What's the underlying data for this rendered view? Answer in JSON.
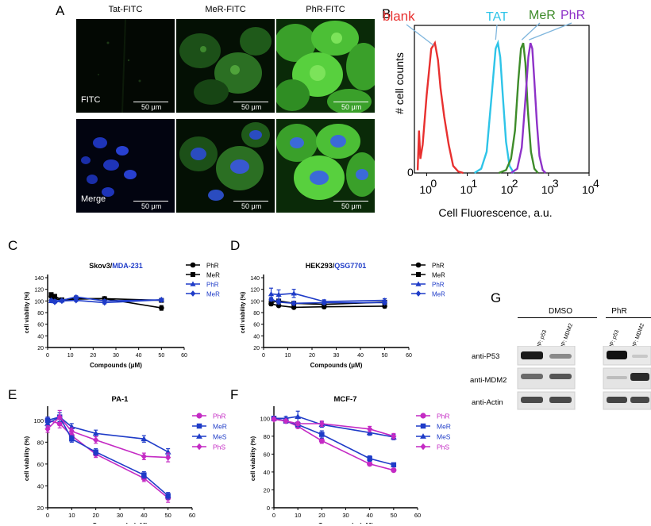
{
  "panels": {
    "A": "A",
    "B": "B",
    "C": "C",
    "D": "D",
    "E": "E",
    "F": "F",
    "G": "G"
  },
  "microscopy": {
    "columns": [
      "Tat-FITC",
      "MeR-FITC",
      "PhR-FITC"
    ],
    "row_labels": [
      "FITC",
      "Merge"
    ],
    "scale_text": "50 μm"
  },
  "western": {
    "groups": [
      "DMSO",
      "PhR"
    ],
    "lanes": [
      "IP: p53",
      "IP: MDM2"
    ],
    "rows": [
      "anti-P53",
      "anti-MDM2",
      "anti-Actin"
    ]
  },
  "chart_data": [
    {
      "id": "B",
      "type": "line",
      "title": "",
      "xlabel": "Cell Fluorescence, a.u.",
      "ylabel": "# cell counts",
      "xscale": "log",
      "xlim": [
        0.5,
        10000
      ],
      "ylim": [
        0,
        100
      ],
      "x_ticks": [
        {
          "v": 1,
          "label": "0"
        },
        {
          "v": 10,
          "label": "1"
        },
        {
          "v": 100,
          "label": "2"
        },
        {
          "v": 1000,
          "label": "3"
        },
        {
          "v": 10000,
          "label": "4"
        }
      ],
      "x_tick_bases": "10",
      "y_ticks": [
        "0"
      ],
      "series": [
        {
          "name": "blank",
          "color": "#e8302f",
          "points": [
            [
              0.6,
              2
            ],
            [
              0.65,
              30
            ],
            [
              0.7,
              10
            ],
            [
              0.8,
              20
            ],
            [
              1.0,
              55
            ],
            [
              1.3,
              88
            ],
            [
              1.6,
              92
            ],
            [
              1.9,
              80
            ],
            [
              2.2,
              60
            ],
            [
              2.7,
              40
            ],
            [
              3.5,
              20
            ],
            [
              4.5,
              5
            ],
            [
              6,
              1
            ],
            [
              8,
              0
            ]
          ]
        },
        {
          "name": "TAT",
          "color": "#2ec4e8",
          "points": [
            [
              15,
              0
            ],
            [
              22,
              3
            ],
            [
              30,
              15
            ],
            [
              40,
              55
            ],
            [
              50,
              88
            ],
            [
              57,
              92
            ],
            [
              65,
              82
            ],
            [
              75,
              55
            ],
            [
              90,
              22
            ],
            [
              110,
              5
            ],
            [
              140,
              0
            ]
          ]
        },
        {
          "name": "MeR",
          "color": "#3e8c2a",
          "points": [
            [
              60,
              0
            ],
            [
              90,
              2
            ],
            [
              120,
              10
            ],
            [
              150,
              30
            ],
            [
              180,
              65
            ],
            [
              210,
              88
            ],
            [
              240,
              92
            ],
            [
              270,
              78
            ],
            [
              310,
              45
            ],
            [
              370,
              15
            ],
            [
              450,
              3
            ],
            [
              550,
              0
            ]
          ]
        },
        {
          "name": "PhR",
          "color": "#8e32c8",
          "points": [
            [
              120,
              0
            ],
            [
              170,
              3
            ],
            [
              220,
              18
            ],
            [
              270,
              52
            ],
            [
              320,
              82
            ],
            [
              360,
              92
            ],
            [
              400,
              88
            ],
            [
              450,
              65
            ],
            [
              520,
              35
            ],
            [
              600,
              12
            ],
            [
              720,
              2
            ],
            [
              850,
              0
            ]
          ]
        }
      ],
      "annotations": [
        {
          "text": "blank",
          "color": "#e8302f"
        },
        {
          "text": "TAT",
          "color": "#2ec4e8"
        },
        {
          "text": "MeR",
          "color": "#3e8c2a"
        },
        {
          "text": "PhR",
          "color": "#8e32c8"
        }
      ]
    },
    {
      "id": "C",
      "type": "line",
      "title_parts": [
        {
          "text": "Skov3/",
          "color": "#000000"
        },
        {
          "text": "MDA-231",
          "color": "#1f3cc8"
        }
      ],
      "xlabel": "Compounds (μM)",
      "ylabel": "cell viability (%)",
      "xlim": [
        0,
        60
      ],
      "ylim": [
        20,
        140
      ],
      "x_ticks": [
        0,
        10,
        20,
        30,
        40,
        50,
        60
      ],
      "y_ticks": [
        20,
        40,
        60,
        80,
        100,
        120,
        140
      ],
      "series": [
        {
          "name": "PhR",
          "color": "#000000",
          "marker": "circle",
          "x": [
            1.56,
            3.125,
            6.25,
            12.5,
            25,
            50
          ],
          "values": [
            108,
            104,
            101,
            103,
            104,
            88
          ],
          "err": [
            2,
            2,
            2,
            2,
            2,
            4
          ]
        },
        {
          "name": "MeR",
          "color": "#000000",
          "marker": "square",
          "x": [
            1.56,
            3.125,
            6.25,
            12.5,
            25,
            50
          ],
          "values": [
            111,
            108,
            102,
            104,
            104,
            101
          ],
          "err": [
            2,
            2,
            2,
            2,
            2,
            2
          ]
        },
        {
          "name": "PhR",
          "color": "#1f3cc8",
          "marker": "triangle",
          "x": [
            1.56,
            3.125,
            6.25,
            12.5,
            25,
            50
          ],
          "values": [
            100,
            100,
            101,
            107,
            100,
            102
          ],
          "err": [
            2,
            2,
            2,
            2,
            2,
            2
          ]
        },
        {
          "name": "MeR",
          "color": "#1f3cc8",
          "marker": "diamond",
          "x": [
            1.56,
            3.125,
            6.25,
            12.5,
            25,
            50
          ],
          "values": [
            101,
            98,
            100,
            101,
            97,
            102
          ],
          "err": [
            2,
            2,
            2,
            2,
            2,
            2
          ]
        }
      ]
    },
    {
      "id": "D",
      "type": "line",
      "title_parts": [
        {
          "text": "HEK293/",
          "color": "#000000"
        },
        {
          "text": "QSG7701",
          "color": "#1f3cc8"
        }
      ],
      "xlabel": "Compounds (μM)",
      "ylabel": "cell viability (%)",
      "xlim": [
        0,
        60
      ],
      "ylim": [
        20,
        140
      ],
      "x_ticks": [
        0,
        10,
        20,
        30,
        40,
        50,
        60
      ],
      "y_ticks": [
        20,
        40,
        60,
        80,
        100,
        120,
        140
      ],
      "series": [
        {
          "name": "PhR",
          "color": "#000000",
          "marker": "circle",
          "x": [
            3.125,
            6.25,
            12.5,
            25,
            50
          ],
          "values": [
            95,
            92,
            89,
            90,
            91
          ],
          "err": [
            3,
            2,
            2,
            3,
            3
          ]
        },
        {
          "name": "MeR",
          "color": "#000000",
          "marker": "square",
          "x": [
            3.125,
            6.25,
            12.5,
            25,
            50
          ],
          "values": [
            97,
            100,
            96,
            94,
            98
          ],
          "err": [
            4,
            3,
            3,
            6,
            3
          ]
        },
        {
          "name": "PhR",
          "color": "#1f3cc8",
          "marker": "triangle",
          "x": [
            3.125,
            6.25,
            12.5,
            25,
            50
          ],
          "values": [
            112,
            111,
            113,
            99,
            101
          ],
          "err": [
            10,
            8,
            7,
            3,
            3
          ]
        },
        {
          "name": "MeR",
          "color": "#1f3cc8",
          "marker": "diamond",
          "x": [
            3.125,
            6.25,
            12.5,
            25,
            50
          ],
          "values": [
            103,
            98,
            96,
            97,
            97
          ],
          "err": [
            3,
            3,
            3,
            3,
            3
          ]
        }
      ]
    },
    {
      "id": "E",
      "type": "line",
      "title": "PA-1",
      "xlabel": "Compounds (μM)",
      "ylabel": "cell viability (%)",
      "xlim": [
        0,
        60
      ],
      "ylim": [
        20,
        110
      ],
      "x_ticks": [
        0,
        10,
        20,
        30,
        40,
        50,
        60
      ],
      "y_ticks": [
        20,
        40,
        60,
        80,
        100
      ],
      "series": [
        {
          "name": "PhR",
          "color": "#c42ac4",
          "marker": "circle",
          "x": [
            0,
            5,
            10,
            20,
            40,
            50
          ],
          "values": [
            100,
            97,
            86,
            69,
            47,
            29
          ],
          "err": [
            3,
            4,
            3,
            3,
            3,
            4
          ]
        },
        {
          "name": "MeR",
          "color": "#1f3cc8",
          "marker": "square",
          "x": [
            0,
            5,
            10,
            20,
            40,
            50
          ],
          "values": [
            100,
            103,
            83,
            71,
            50,
            31
          ],
          "err": [
            3,
            4,
            3,
            3,
            3,
            3
          ]
        },
        {
          "name": "MeS",
          "color": "#1f3cc8",
          "marker": "triangle",
          "x": [
            0,
            5,
            10,
            20,
            40,
            50
          ],
          "values": [
            97,
            103,
            94,
            88,
            83,
            71
          ],
          "err": [
            3,
            4,
            3,
            3,
            3,
            3
          ]
        },
        {
          "name": "PhS",
          "color": "#c42ac4",
          "marker": "diamond",
          "x": [
            0,
            5,
            10,
            20,
            40,
            50
          ],
          "values": [
            92,
            103,
            90,
            82,
            67,
            66
          ],
          "err": [
            3,
            6,
            3,
            3,
            3,
            4
          ]
        }
      ]
    },
    {
      "id": "F",
      "type": "line",
      "title": "MCF-7",
      "xlabel": "Compounds (μM)",
      "ylabel": "cell viability (%)",
      "xlim": [
        0,
        60
      ],
      "ylim": [
        0,
        110
      ],
      "x_ticks": [
        0,
        10,
        20,
        30,
        40,
        50,
        60
      ],
      "y_ticks": [
        0,
        20,
        40,
        60,
        80,
        100
      ],
      "series": [
        {
          "name": "PhR",
          "color": "#c42ac4",
          "marker": "circle",
          "x": [
            0,
            5,
            10,
            20,
            40,
            50
          ],
          "values": [
            100,
            97,
            91,
            75,
            49,
            42
          ],
          "err": [
            2,
            2,
            2,
            3,
            2,
            1
          ]
        },
        {
          "name": "MeR",
          "color": "#1f3cc8",
          "marker": "square",
          "x": [
            0,
            5,
            10,
            20,
            40,
            50
          ],
          "values": [
            100,
            97,
            93,
            82,
            55,
            48
          ],
          "err": [
            2,
            2,
            2,
            4,
            3,
            2
          ]
        },
        {
          "name": "MeS",
          "color": "#1f3cc8",
          "marker": "triangle",
          "x": [
            0,
            5,
            10,
            20,
            40,
            50
          ],
          "values": [
            100,
            100,
            102,
            93,
            84,
            79
          ],
          "err": [
            2,
            2,
            6,
            3,
            3,
            3
          ]
        },
        {
          "name": "PhS",
          "color": "#c42ac4",
          "marker": "diamond",
          "x": [
            0,
            5,
            10,
            20,
            40,
            50
          ],
          "values": [
            99,
            97,
            94,
            94,
            88,
            80
          ],
          "err": [
            2,
            2,
            2,
            3,
            3,
            3
          ]
        }
      ]
    }
  ]
}
